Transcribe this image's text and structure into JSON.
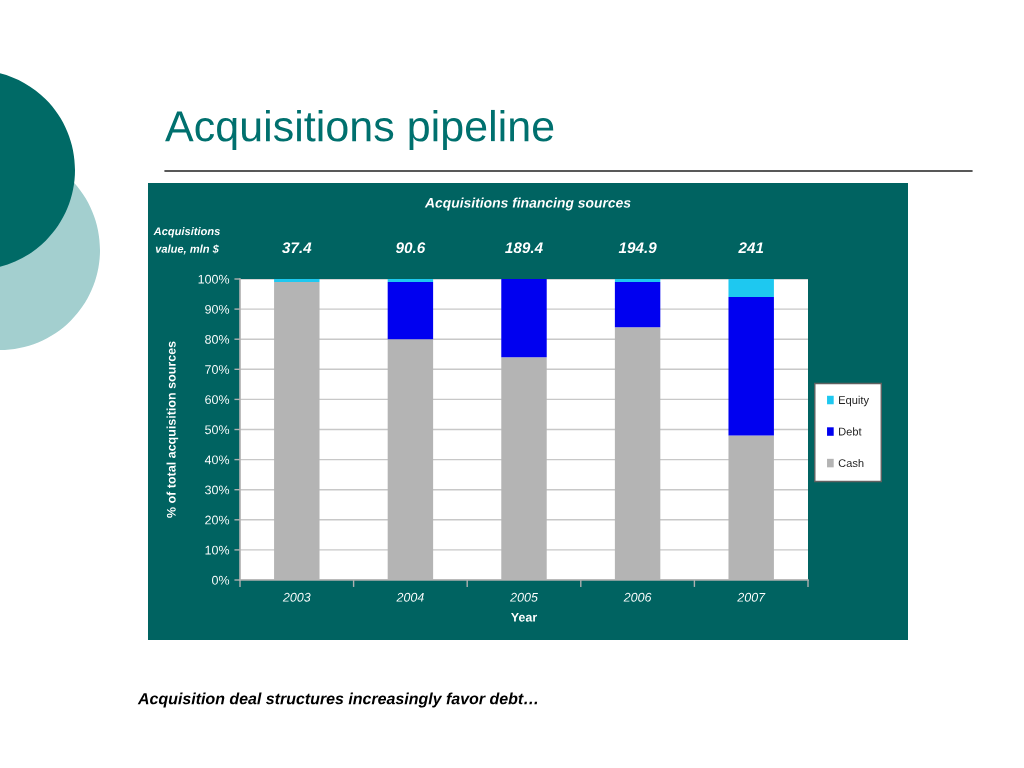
{
  "chart_data": {
    "type": "bar",
    "title": "Acquisitions pipeline",
    "subtitle": "Acquisitions financing sources",
    "xlabel": "Year",
    "ylabel": "% of total acquisition sources",
    "categories": [
      "2003",
      "2004",
      "2005",
      "2006",
      "2007"
    ],
    "stacked": true,
    "series": [
      {
        "name": "Cash",
        "color": "#b4b4b4",
        "values": [
          99,
          80,
          74,
          84,
          48
        ]
      },
      {
        "name": "Debt",
        "color": "#0000f0",
        "values": [
          0,
          19,
          26,
          15,
          46
        ]
      },
      {
        "name": "Equity",
        "color": "#1ec8f0",
        "values": [
          1,
          1,
          0,
          1,
          6
        ]
      }
    ],
    "ylim": [
      0,
      100
    ],
    "yticks": [
      {
        "value": 0,
        "label": "0%"
      },
      {
        "value": 10,
        "label": "10%"
      },
      {
        "value": 20,
        "label": "20%"
      },
      {
        "value": 30,
        "label": "30%"
      },
      {
        "value": 40,
        "label": "40%"
      },
      {
        "value": 50,
        "label": "50%"
      },
      {
        "value": 60,
        "label": "60%"
      },
      {
        "value": 70,
        "label": "70%"
      },
      {
        "value": 80,
        "label": "80%"
      },
      {
        "value": 90,
        "label": "90%"
      },
      {
        "value": 100,
        "label": "100%"
      }
    ],
    "grid": "y",
    "legend": "right",
    "annotations": [
      "Acquisitions\nvalue, mln $",
      "37.4",
      "90.6",
      "189.4",
      "194.9",
      "241",
      "Acquisition deal structures increasingly favor debt…"
    ]
  }
}
